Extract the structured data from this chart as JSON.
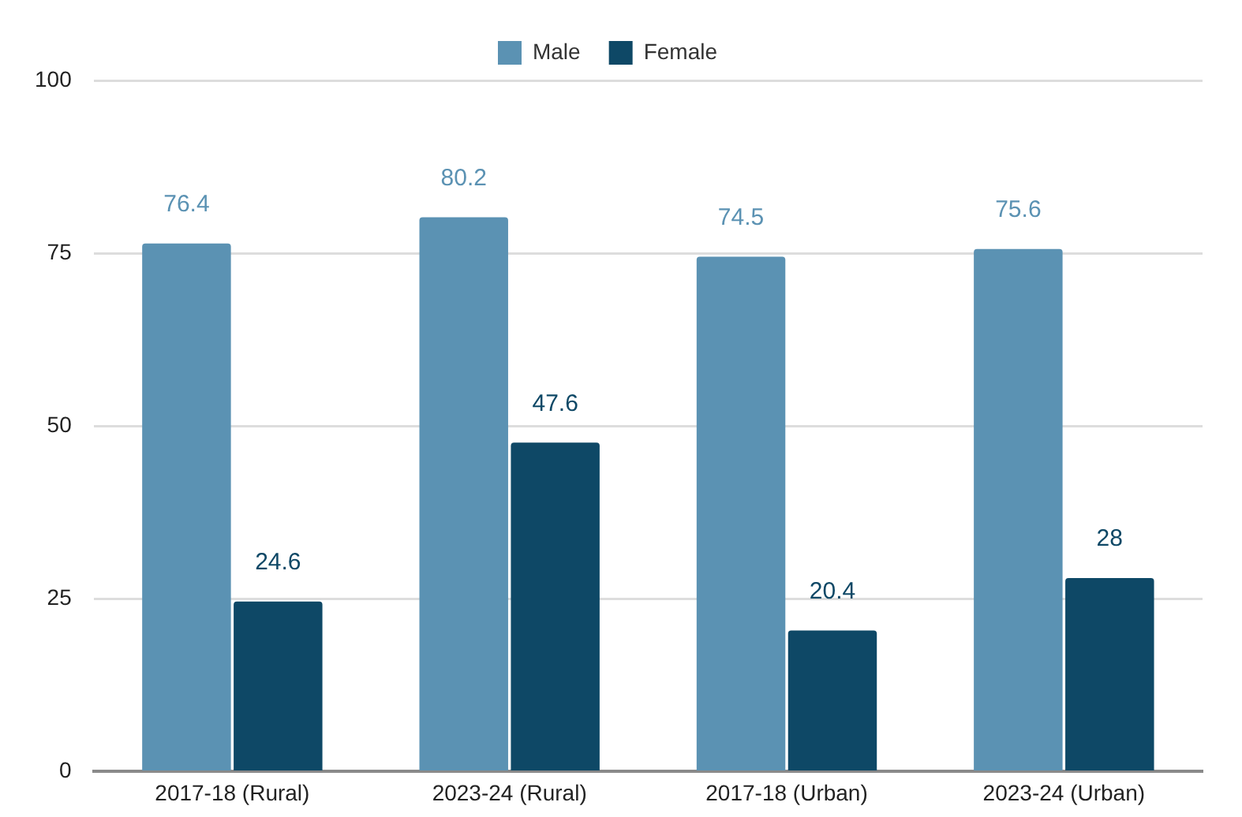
{
  "chart_data": {
    "type": "bar",
    "categories": [
      "2017-18 (Rural)",
      "2023-24 (Rural)",
      "2017-18 (Urban)",
      "2023-24 (Urban)"
    ],
    "series": [
      {
        "name": "Male",
        "color": "#5b92b3",
        "values": [
          76.4,
          80.2,
          74.5,
          75.6
        ]
      },
      {
        "name": "Female",
        "color": "#0e4866",
        "values": [
          24.6,
          47.6,
          20.4,
          28
        ]
      }
    ],
    "ylim": [
      0,
      100
    ],
    "yticks": [
      0,
      25,
      50,
      75,
      100
    ],
    "grid": "y",
    "legend": "top",
    "data_labels": true
  }
}
